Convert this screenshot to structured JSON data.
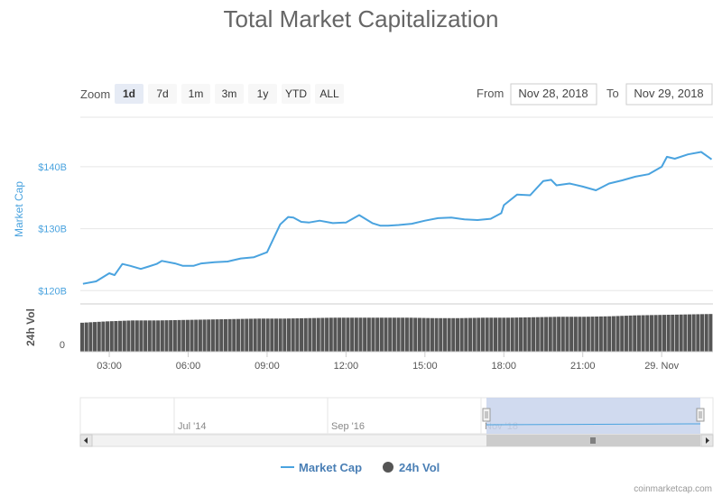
{
  "title": "Total Market Capitalization",
  "zoom": {
    "label": "Zoom",
    "buttons": [
      "1d",
      "7d",
      "1m",
      "3m",
      "1y",
      "YTD",
      "ALL"
    ],
    "active": "1d"
  },
  "range": {
    "from_label": "From",
    "from_value": "Nov 28, 2018",
    "to_label": "To",
    "to_value": "Nov 29, 2018"
  },
  "colors": {
    "market_cap": "#4aa3df",
    "volume": "#555555",
    "navigator_fill": "#c8d4ec"
  },
  "chart_data": {
    "type": "line",
    "title": "Total Market Capitalization",
    "x_tick_labels": [
      "03:00",
      "06:00",
      "09:00",
      "12:00",
      "15:00",
      "18:00",
      "21:00",
      "29. Nov"
    ],
    "x_range_hours": [
      1.9,
      25.95
    ],
    "y_axes": [
      {
        "name": "Market Cap",
        "tick_labels": [
          "$120B",
          "$130B",
          "$140B"
        ],
        "ylim_billions": [
          118,
          148
        ]
      },
      {
        "name": "24h Vol",
        "tick_labels": [
          "0"
        ]
      }
    ],
    "series": [
      {
        "name": "Market Cap",
        "unit": "USD billions",
        "x_hours": [
          2.0,
          2.5,
          3.0,
          3.2,
          3.5,
          3.8,
          4.2,
          4.5,
          4.8,
          5.0,
          5.5,
          5.8,
          6.2,
          6.5,
          7.0,
          7.5,
          8.0,
          8.5,
          9.0,
          9.5,
          9.8,
          10.0,
          10.3,
          10.6,
          11.0,
          11.5,
          12.0,
          12.5,
          13.0,
          13.3,
          13.6,
          14.0,
          14.5,
          15.0,
          15.5,
          16.0,
          16.5,
          17.0,
          17.5,
          17.9,
          18.0,
          18.5,
          19.0,
          19.5,
          19.8,
          20.0,
          20.5,
          21.0,
          21.5,
          22.0,
          22.5,
          23.0,
          23.5,
          24.0,
          24.2,
          24.5,
          25.0,
          25.5,
          25.7,
          25.9
        ],
        "values": [
          121.1,
          121.5,
          122.8,
          122.5,
          124.3,
          124.0,
          123.5,
          123.9,
          124.3,
          124.8,
          124.4,
          124.0,
          124.0,
          124.4,
          124.6,
          124.7,
          125.2,
          125.4,
          126.2,
          130.7,
          131.9,
          131.8,
          131.1,
          131.0,
          131.3,
          130.9,
          131.0,
          132.2,
          130.9,
          130.5,
          130.5,
          130.6,
          130.8,
          131.3,
          131.7,
          131.8,
          131.5,
          131.4,
          131.6,
          132.5,
          133.8,
          135.5,
          135.4,
          137.7,
          137.9,
          137.0,
          137.3,
          136.8,
          136.2,
          137.3,
          137.8,
          138.4,
          138.8,
          140.0,
          141.6,
          141.3,
          142.0,
          142.4,
          141.8,
          141.2
        ]
      },
      {
        "name": "24h Vol",
        "relative_height": [
          0.63,
          0.66,
          0.68,
          0.68,
          0.69,
          0.7,
          0.71,
          0.72,
          0.72,
          0.73,
          0.74,
          0.74,
          0.74,
          0.74,
          0.73,
          0.73,
          0.74,
          0.74,
          0.75,
          0.76,
          0.76,
          0.77,
          0.79,
          0.8,
          0.81,
          0.82
        ]
      }
    ],
    "navigator_tick_labels": [
      "Jul '14",
      "Sep '16",
      "Nov '18"
    ],
    "legend": [
      "Market Cap",
      "24h Vol"
    ]
  },
  "credits": "coinmarketcap.com"
}
